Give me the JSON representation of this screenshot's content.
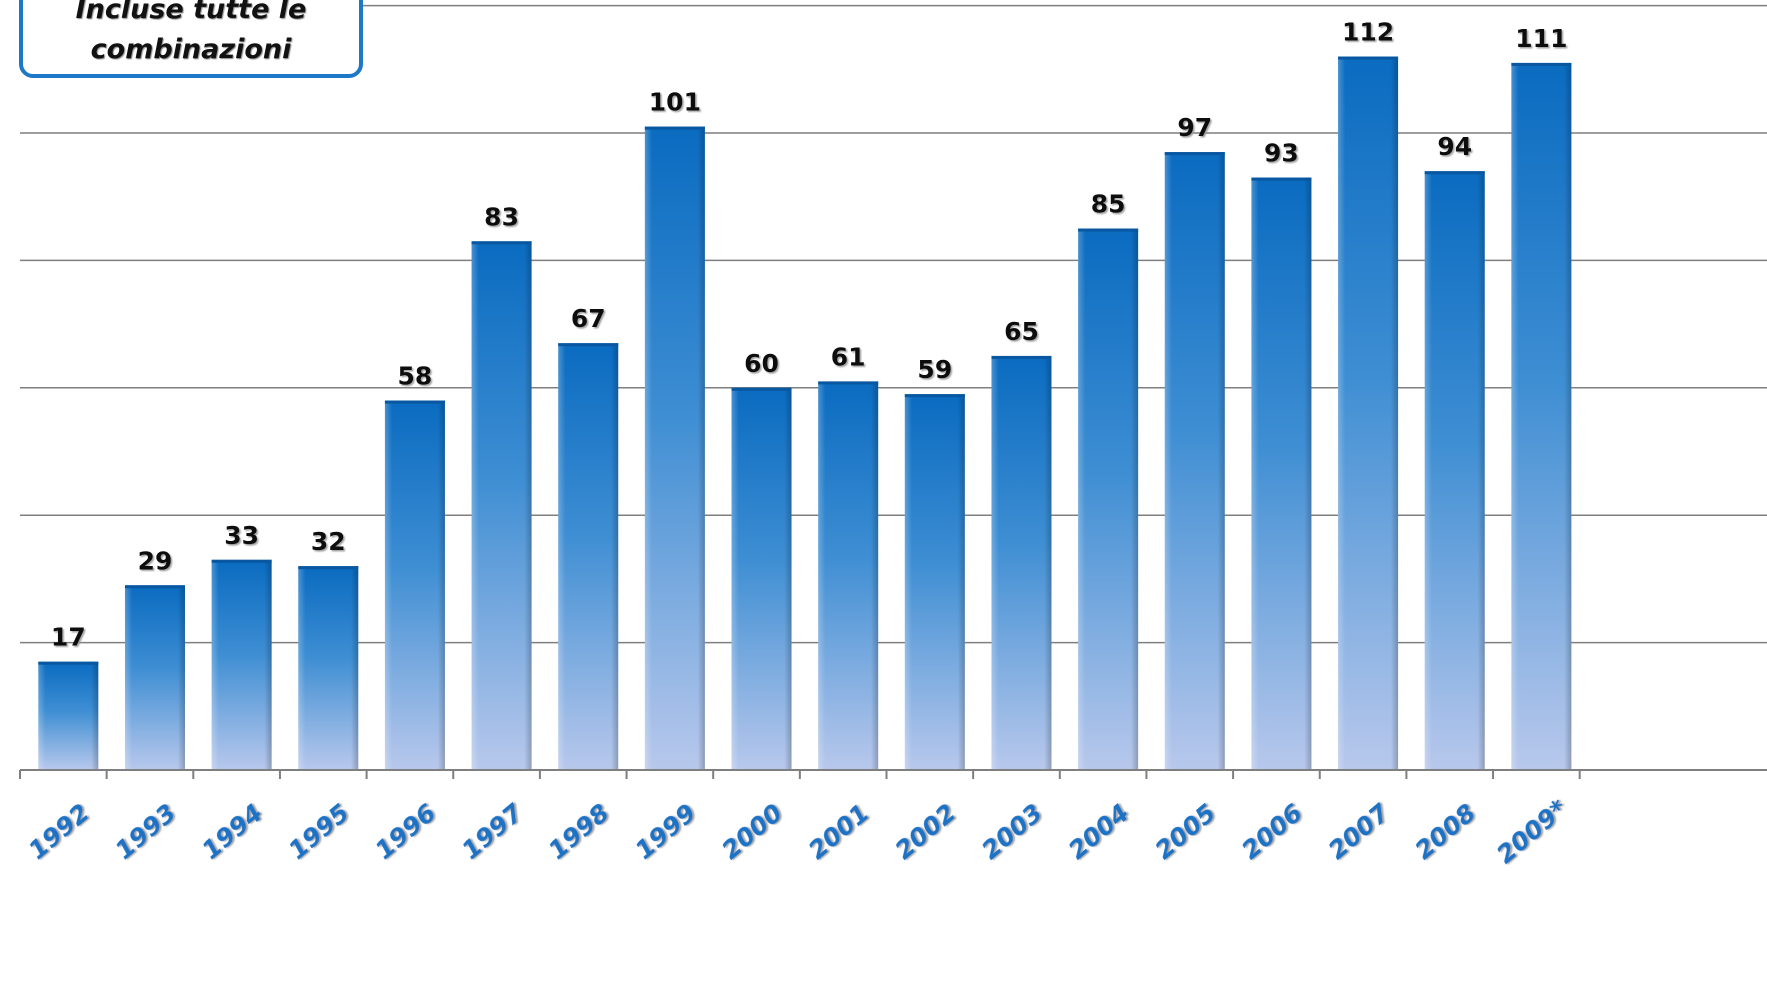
{
  "legend": {
    "line1": "Incluse tutte le",
    "line2": "combinazioni"
  },
  "colors": {
    "bar_top": "#0A6BC0",
    "bar_bottom": "#B8C8EC",
    "grid": "#7F7F7F",
    "axis_label": "#1C73C6",
    "value_label": "#111111",
    "legend_border": "#1E78C8"
  },
  "chart_data": {
    "type": "bar",
    "title": "",
    "xlabel": "",
    "ylabel": "",
    "categories": [
      "1992",
      "1993",
      "1994",
      "1995",
      "1996",
      "1997",
      "1998",
      "1999",
      "2000",
      "2001",
      "2002",
      "2003",
      "2004",
      "2005",
      "2006",
      "2007",
      "2008",
      "2009*"
    ],
    "values": [
      17,
      29,
      33,
      32,
      58,
      83,
      67,
      101,
      60,
      61,
      59,
      65,
      85,
      97,
      93,
      112,
      94,
      111
    ],
    "ylim": [
      0,
      120
    ],
    "grid": true,
    "legend": "top-left"
  }
}
